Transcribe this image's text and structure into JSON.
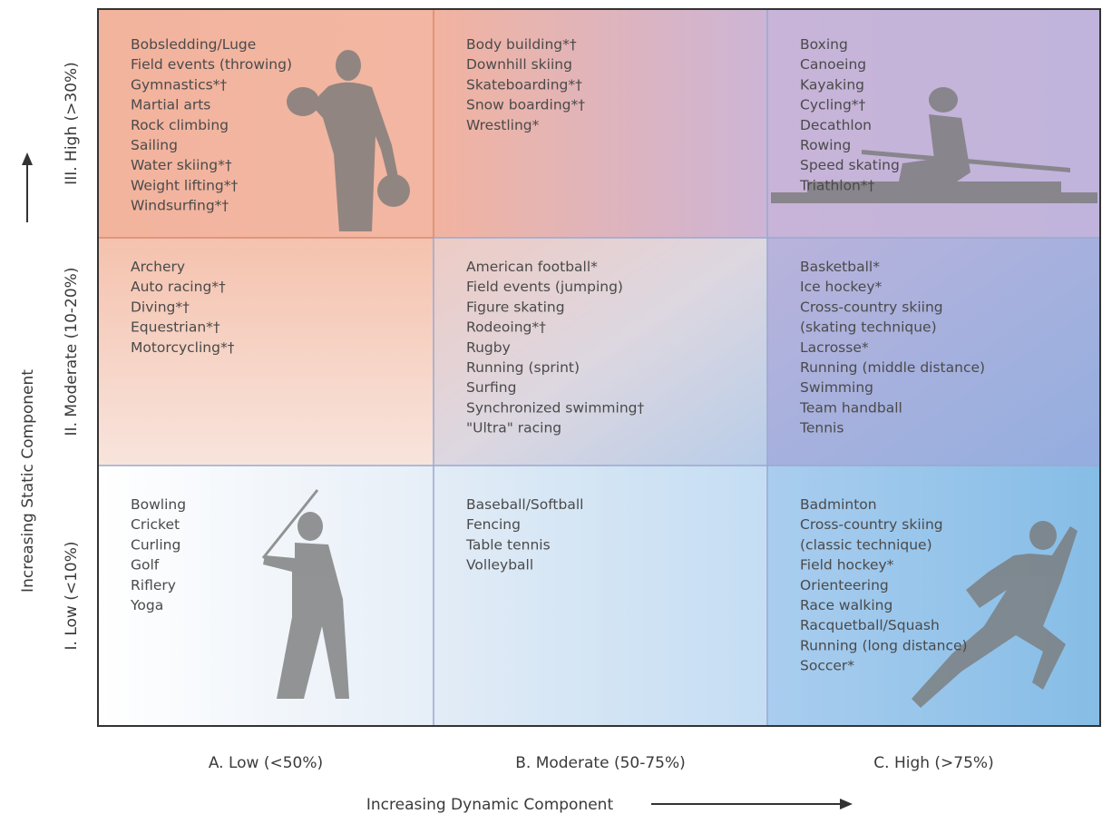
{
  "y_axis": {
    "title": "Increasing Static Component"
  },
  "x_axis": {
    "title": "Increasing Dynamic Component"
  },
  "rows": [
    "III. High (>30%)",
    "II. Moderate (10-20%)",
    "I. Low (<10%)"
  ],
  "columns": [
    "A. Low (<50%)",
    "B. Moderate (50-75%)",
    "C. High (>75%)"
  ],
  "cells": [
    [
      [
        "Bobsledding/Luge",
        "Field events (throwing)",
        "Gymnastics*†",
        "Martial arts",
        "Rock climbing",
        "Sailing",
        "Water skiing*†",
        "Weight lifting*†",
        "Windsurfing*†"
      ],
      [
        "Body building*†",
        "Downhill skiing",
        "Skateboarding*†",
        "Snow boarding*†",
        "Wrestling*"
      ],
      [
        "Boxing",
        "Canoeing",
        "Kayaking",
        "Cycling*†",
        "Decathlon",
        "Rowing",
        "Speed skating",
        "Triathlon*†"
      ]
    ],
    [
      [
        "Archery",
        "Auto racing*†",
        "Diving*†",
        "Equestrian*†",
        "Motorcycling*†"
      ],
      [
        "American football*",
        "Field events (jumping)",
        "Figure skating",
        "Rodeoing*†",
        "Rugby",
        "Running (sprint)",
        "Surfing",
        "Synchronized swimming†",
        "\"Ultra\" racing"
      ],
      [
        "Basketball*",
        "Ice hockey*",
        "Cross-country skiing",
        "(skating technique)",
        "Lacrosse*",
        "Running (middle distance)",
        "Swimming",
        "Team handball",
        "Tennis"
      ]
    ],
    [
      [
        "Bowling",
        "Cricket",
        "Curling",
        "Golf",
        "Riflery",
        "Yoga"
      ],
      [
        "Baseball/Softball",
        "Fencing",
        "Table tennis",
        "Volleyball"
      ],
      [
        "Badminton",
        "Cross-country skiing",
        "(classic technique)",
        "Field hockey*",
        "Orienteering",
        "Race walking",
        "Racquetball/Squash",
        "Running (long distance)",
        "Soccer*"
      ]
    ]
  ]
}
